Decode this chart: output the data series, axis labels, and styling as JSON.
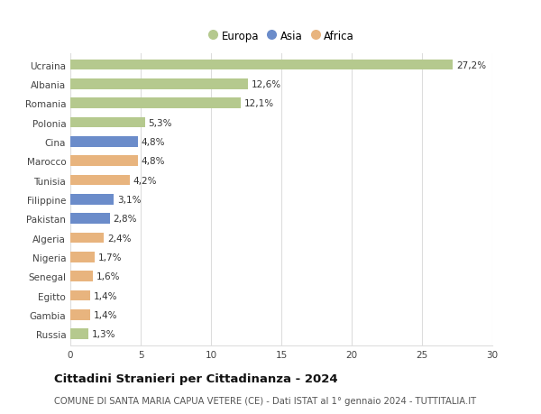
{
  "categories": [
    "Ucraina",
    "Albania",
    "Romania",
    "Polonia",
    "Cina",
    "Marocco",
    "Tunisia",
    "Filippine",
    "Pakistan",
    "Algeria",
    "Nigeria",
    "Senegal",
    "Egitto",
    "Gambia",
    "Russia"
  ],
  "values": [
    27.2,
    12.6,
    12.1,
    5.3,
    4.8,
    4.8,
    4.2,
    3.1,
    2.8,
    2.4,
    1.7,
    1.6,
    1.4,
    1.4,
    1.3
  ],
  "labels": [
    "27,2%",
    "12,6%",
    "12,1%",
    "5,3%",
    "4,8%",
    "4,8%",
    "4,2%",
    "3,1%",
    "2,8%",
    "2,4%",
    "1,7%",
    "1,6%",
    "1,4%",
    "1,4%",
    "1,3%"
  ],
  "continents": [
    "Europa",
    "Europa",
    "Europa",
    "Europa",
    "Asia",
    "Africa",
    "Africa",
    "Asia",
    "Asia",
    "Africa",
    "Africa",
    "Africa",
    "Africa",
    "Africa",
    "Europa"
  ],
  "colors": {
    "Europa": "#b5c98e",
    "Asia": "#6b8cca",
    "Africa": "#e8b47e"
  },
  "xlim": [
    0,
    30
  ],
  "xticks": [
    0,
    5,
    10,
    15,
    20,
    25,
    30
  ],
  "title": "Cittadini Stranieri per Cittadinanza - 2024",
  "subtitle": "COMUNE DI SANTA MARIA CAPUA VETERE (CE) - Dati ISTAT al 1° gennaio 2024 - TUTTITALIA.IT",
  "background_color": "#ffffff",
  "grid_color": "#dddddd",
  "bar_height": 0.55,
  "title_fontsize": 9.5,
  "subtitle_fontsize": 7.2,
  "tick_fontsize": 7.5,
  "label_fontsize": 7.5,
  "legend_fontsize": 8.5
}
